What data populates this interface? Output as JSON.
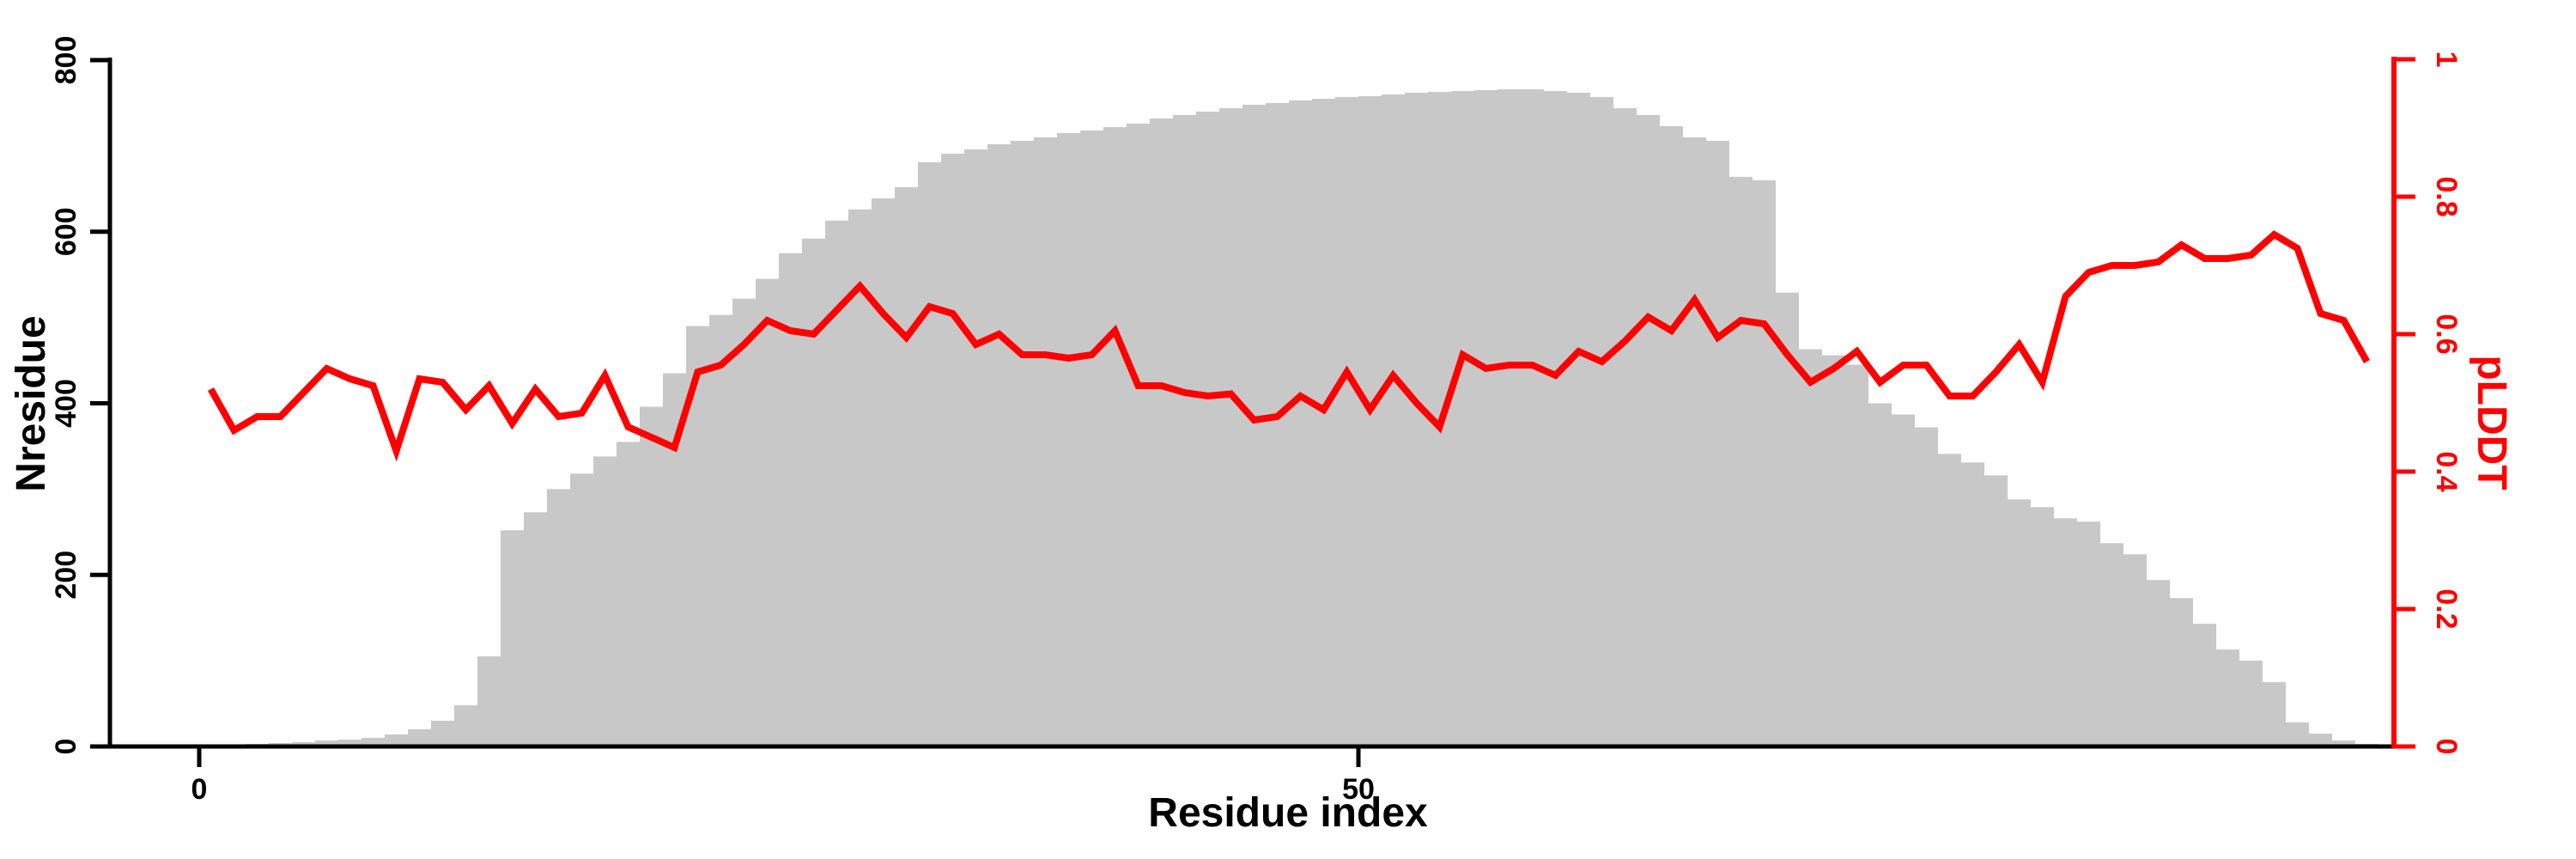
{
  "figure": {
    "background": "#FFFFFF",
    "bar_color": "#C8C8C8",
    "line_color": "#FF0000",
    "axis_left_color": "#000000",
    "axis_bottom_color": "#000000",
    "axis_right_color": "#FF0000"
  },
  "chart_data": {
    "type": "bar",
    "title": "",
    "xlabel": "Residue index",
    "ylabel_left": "Nresidue",
    "ylabel_right": "pLDDT",
    "legend": "none",
    "grid": false,
    "x_bin_start": 0,
    "x_bin_width": 1,
    "x": [
      1,
      2,
      3,
      4,
      5,
      6,
      7,
      8,
      9,
      10,
      11,
      12,
      13,
      14,
      15,
      16,
      17,
      18,
      19,
      20,
      21,
      22,
      23,
      24,
      25,
      26,
      27,
      28,
      29,
      30,
      31,
      32,
      33,
      34,
      35,
      36,
      37,
      38,
      39,
      40,
      41,
      42,
      43,
      44,
      45,
      46,
      47,
      48,
      49,
      50,
      51,
      52,
      53,
      54,
      55,
      56,
      57,
      58,
      59,
      60,
      61,
      62,
      63,
      64,
      65,
      66,
      67,
      68,
      69,
      70,
      71,
      72,
      73,
      74,
      75,
      76,
      77,
      78,
      79,
      80,
      81,
      82,
      83,
      84,
      85,
      86,
      87,
      88,
      89,
      90,
      91,
      92,
      93,
      94
    ],
    "series": [
      {
        "name": "Nresidue",
        "render": "bar",
        "axis": "left",
        "color": "#C8C8C8",
        "values": [
          1,
          2,
          3,
          4,
          5,
          7,
          8,
          10,
          14,
          20,
          30,
          48,
          105,
          252,
          273,
          300,
          318,
          338,
          355,
          396,
          435,
          490,
          503,
          522,
          545,
          575,
          592,
          613,
          626,
          639,
          652,
          681,
          691,
          696,
          702,
          706,
          710,
          715,
          718,
          722,
          726,
          732,
          736,
          740,
          744,
          748,
          750,
          753,
          755,
          757,
          758,
          760,
          762,
          763,
          764,
          765,
          766,
          766,
          764,
          762,
          757,
          744,
          736,
          723,
          710,
          706,
          664,
          660,
          529,
          463,
          456,
          445,
          400,
          387,
          372,
          341,
          331,
          316,
          288,
          279,
          266,
          262,
          237,
          224,
          194,
          173,
          143,
          113,
          100,
          75,
          28,
          15,
          7,
          3
        ]
      },
      {
        "name": "pLDDT",
        "render": "line",
        "axis": "right",
        "color": "#FF0000",
        "values": [
          0.52,
          0.46,
          0.48,
          0.48,
          0.515,
          0.55,
          0.535,
          0.525,
          0.43,
          0.535,
          0.53,
          0.49,
          0.525,
          0.47,
          0.52,
          0.48,
          0.485,
          0.54,
          0.465,
          0.45,
          0.435,
          0.545,
          0.555,
          0.585,
          0.62,
          0.605,
          0.6,
          0.635,
          0.67,
          0.63,
          0.595,
          0.64,
          0.63,
          0.585,
          0.6,
          0.57,
          0.57,
          0.565,
          0.57,
          0.605,
          0.525,
          0.525,
          0.515,
          0.51,
          0.513,
          0.475,
          0.48,
          0.51,
          0.49,
          0.545,
          0.49,
          0.54,
          0.5,
          0.465,
          0.57,
          0.55,
          0.555,
          0.555,
          0.54,
          0.575,
          0.56,
          0.59,
          0.625,
          0.605,
          0.65,
          0.595,
          0.62,
          0.615,
          0.57,
          0.53,
          0.55,
          0.575,
          0.53,
          0.555,
          0.555,
          0.51,
          0.51,
          0.545,
          0.585,
          0.53,
          0.655,
          0.69,
          0.7,
          0.7,
          0.705,
          0.73,
          0.71,
          0.71,
          0.715,
          0.745,
          0.725,
          0.63,
          0.62,
          0.56
        ]
      }
    ],
    "axes": {
      "x": {
        "label": "Residue index",
        "ticks": [
          "0",
          "50"
        ],
        "tick_values": [
          0,
          50
        ],
        "range": [
          -4,
          95
        ]
      },
      "y_left": {
        "label": "Nresidue",
        "ticks": [
          "0",
          "200",
          "400",
          "600",
          "800"
        ],
        "tick_values": [
          0,
          200,
          400,
          600,
          800
        ],
        "range": [
          0,
          800
        ],
        "color": "#000000"
      },
      "y_right": {
        "label": "pLDDT",
        "ticks": [
          "0",
          "0.2",
          "0.4",
          "0.6",
          "0.8",
          "1"
        ],
        "tick_values": [
          0,
          0.2,
          0.4,
          0.6,
          0.8,
          1
        ],
        "range": [
          0,
          1
        ],
        "color": "#FF0000"
      }
    }
  }
}
